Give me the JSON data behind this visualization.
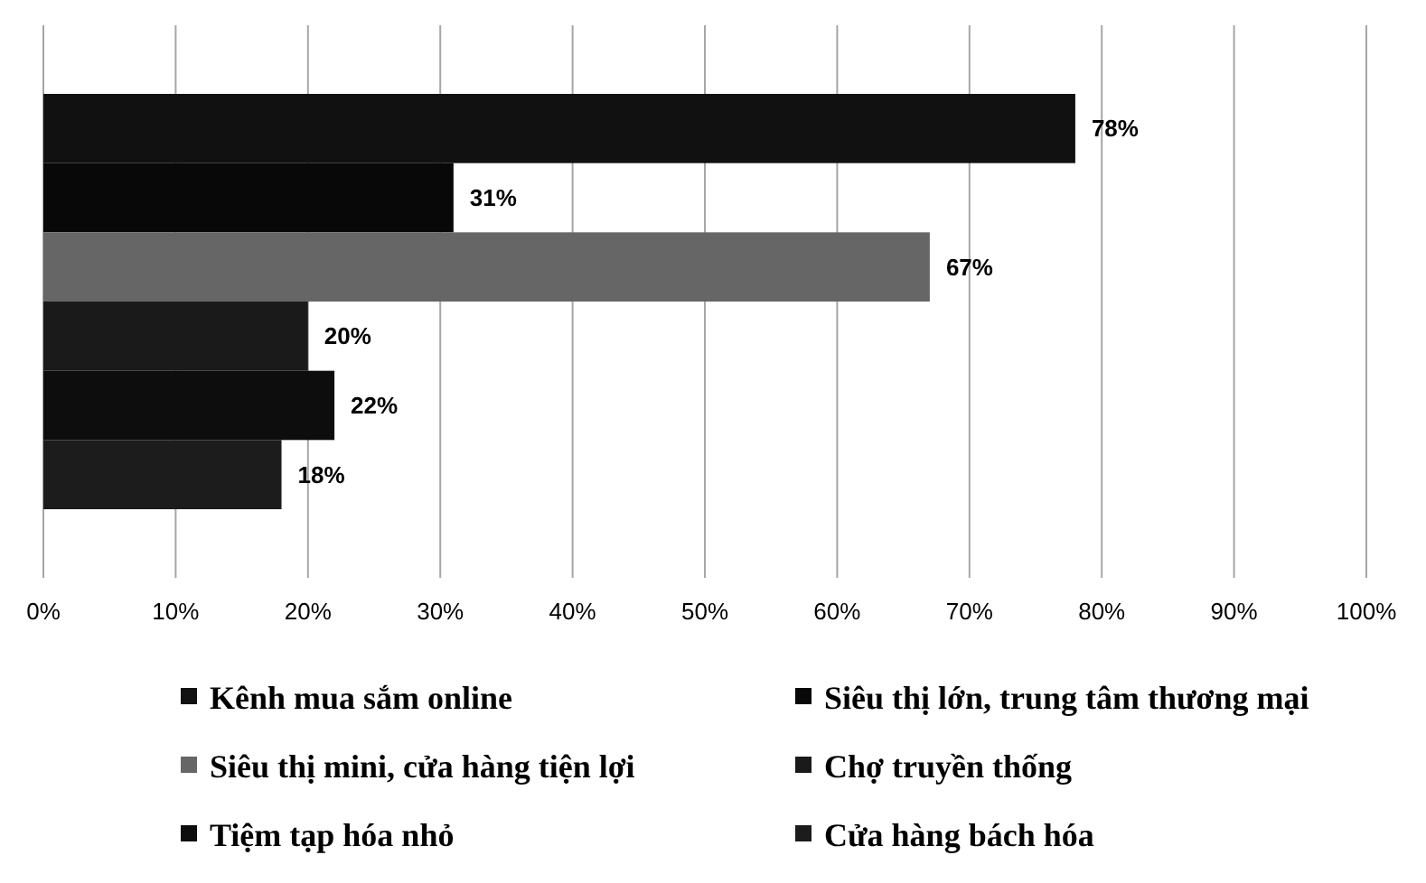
{
  "chart_data": {
    "type": "bar",
    "orientation": "horizontal",
    "categories": [
      null
    ],
    "series": [
      {
        "name": "Kênh mua sắm online",
        "color": "#111111",
        "values": [
          78
        ],
        "value_labels": [
          "78%"
        ]
      },
      {
        "name": "Siêu thị lớn, trung tâm thương mại",
        "color": "#080808",
        "values": [
          31
        ],
        "value_labels": [
          "31%"
        ]
      },
      {
        "name": "Siêu thị mini, cửa hàng tiện lợi",
        "color": "#666666",
        "values": [
          67
        ],
        "value_labels": [
          "67%"
        ]
      },
      {
        "name": "Chợ truyền thống",
        "color": "#1a1a1a",
        "values": [
          20
        ],
        "value_labels": [
          "20%"
        ]
      },
      {
        "name": "Tiệm tạp hóa nhỏ",
        "color": "#0d0d0d",
        "values": [
          22
        ],
        "value_labels": [
          "22%"
        ]
      },
      {
        "name": "Cửa hàng bách hóa",
        "color": "#1c1c1c",
        "values": [
          18
        ],
        "value_labels": [
          "18%"
        ]
      }
    ],
    "xlim": [
      0,
      100
    ],
    "xticks": [
      {
        "value": 0,
        "label": "0%"
      },
      {
        "value": 10,
        "label": "10%"
      },
      {
        "value": 20,
        "label": "20%"
      },
      {
        "value": 30,
        "label": "30%"
      },
      {
        "value": 40,
        "label": "40%"
      },
      {
        "value": 50,
        "label": "50%"
      },
      {
        "value": 60,
        "label": "60%"
      },
      {
        "value": 70,
        "label": "70%"
      },
      {
        "value": 80,
        "label": "80%"
      },
      {
        "value": 90,
        "label": "90%"
      },
      {
        "value": 100,
        "label": "100%"
      }
    ],
    "grid": "x",
    "legend": "bottom"
  }
}
